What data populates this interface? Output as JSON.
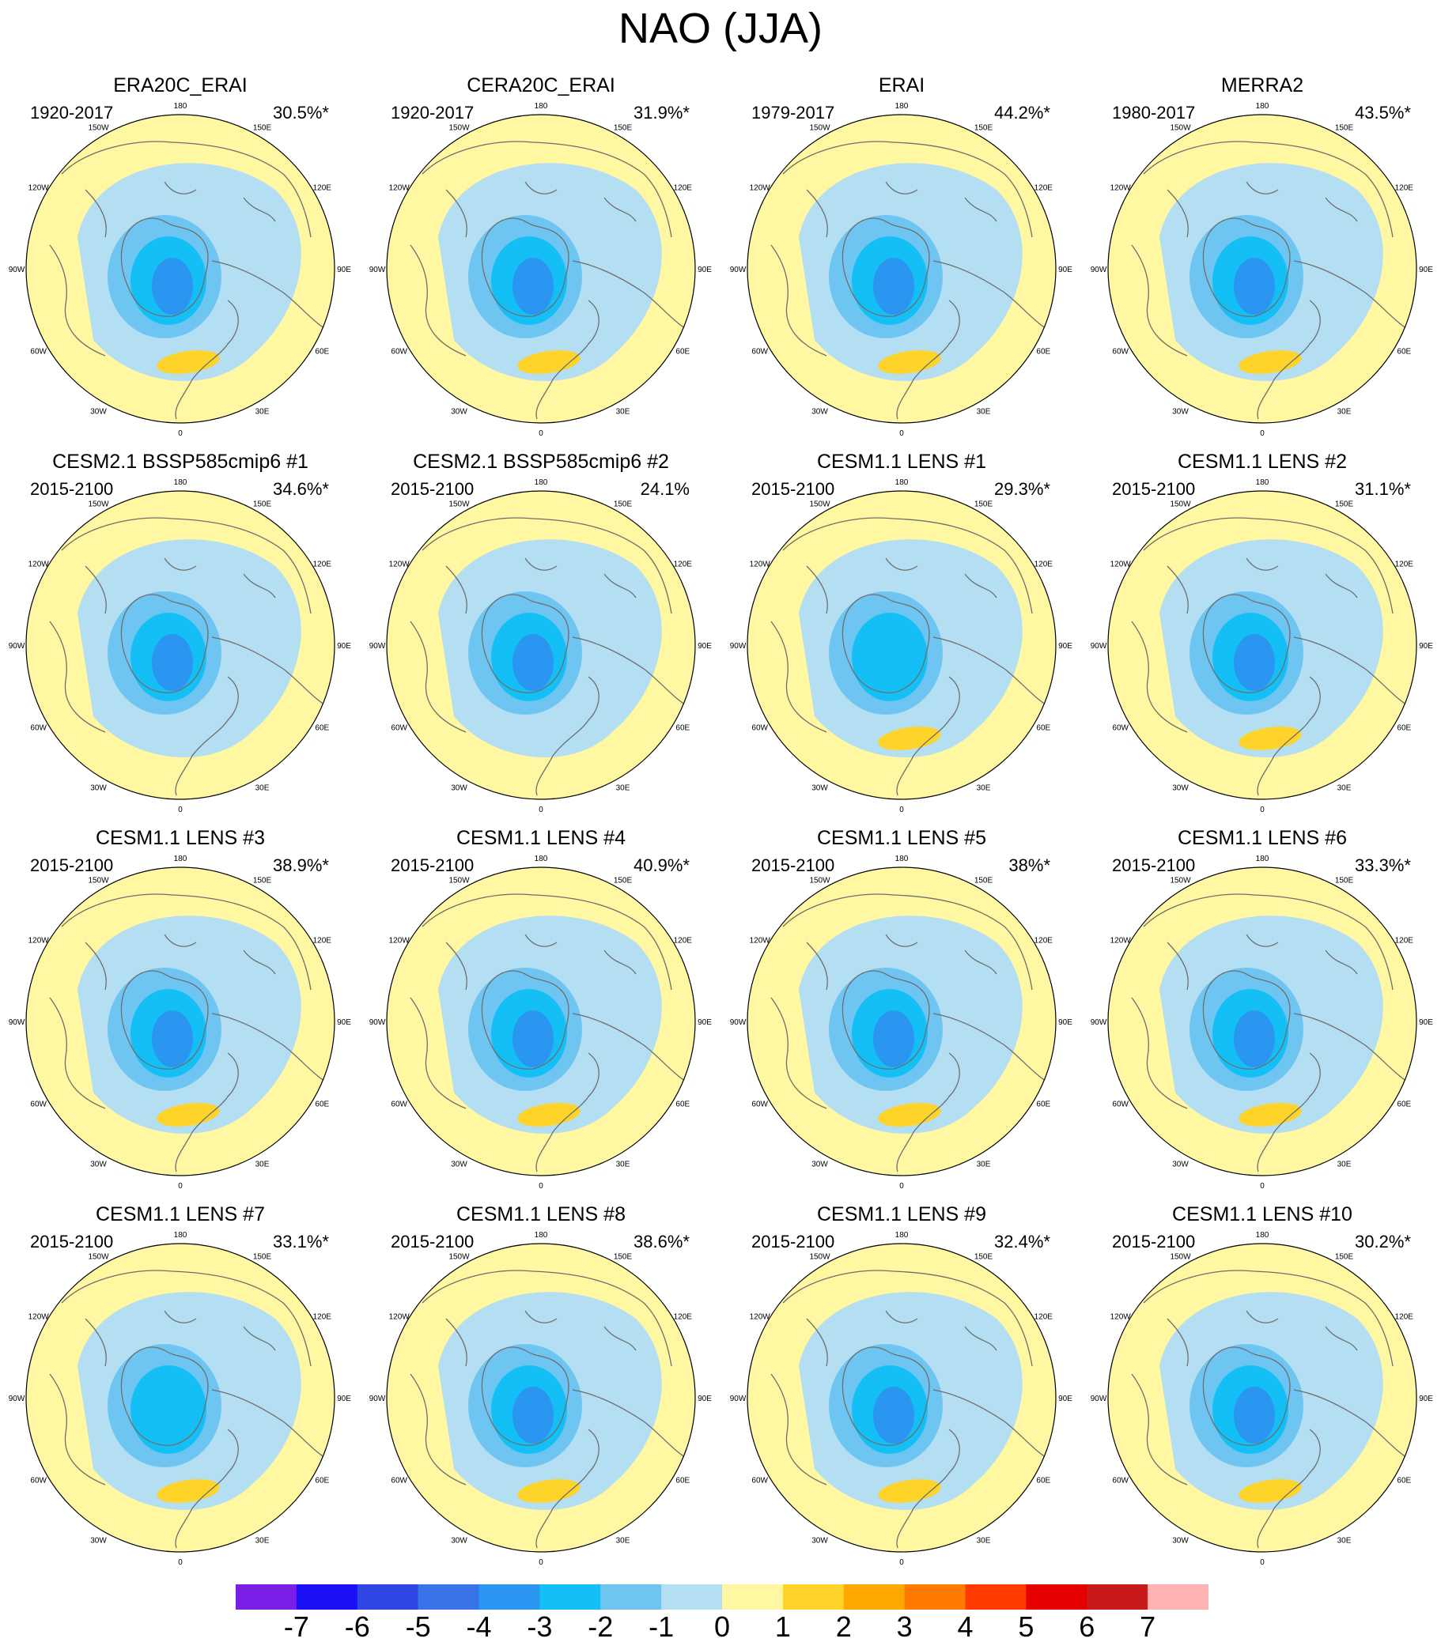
{
  "figure_title": "NAO (JJA)",
  "colors": {
    "map_background": "#fff7a1",
    "land_outline": "#6e6e6e",
    "contour_levels": [
      "#7b1fe8",
      "#1a0ff5",
      "#2f45e6",
      "#3a72e8",
      "#2a96f2",
      "#14bff5",
      "#6fc5f2",
      "#b4dff2",
      "#fff7a1",
      "#ffd42a",
      "#ffa800",
      "#ff7a00",
      "#ff3a00",
      "#e60000",
      "#c81a1a",
      "#ffb3b3"
    ]
  },
  "lon_labels": [
    "180",
    "150E",
    "120E",
    "90E",
    "60E",
    "30E",
    "0",
    "30W",
    "60W",
    "90W",
    "120W",
    "150W"
  ],
  "chart_data": {
    "type": "heatmap",
    "title": "NAO (JJA)",
    "projection": "north polar stereographic",
    "colorbar": {
      "tick_labels": [
        "-7",
        "-6",
        "-5",
        "-4",
        "-3",
        "-2",
        "-1",
        "0",
        "1",
        "2",
        "3",
        "4",
        "5",
        "6",
        "7"
      ],
      "levels": [
        -7,
        -6,
        -5,
        -4,
        -3,
        -2,
        -1,
        0,
        1,
        2,
        3,
        4,
        5,
        6,
        7
      ]
    },
    "panels": [
      {
        "title": "ERA20C_ERAI",
        "period": "1920-2017",
        "variance": "30.5%*",
        "low_center": -3.5,
        "high_center": 1.5
      },
      {
        "title": "CERA20C_ERAI",
        "period": "1920-2017",
        "variance": "31.9%*",
        "low_center": -3.5,
        "high_center": 1.5
      },
      {
        "title": "ERAI",
        "period": "1979-2017",
        "variance": "44.2%*",
        "low_center": -3.5,
        "high_center": 1.5
      },
      {
        "title": "MERRA2",
        "period": "1980-2017",
        "variance": "43.5%*",
        "low_center": -3.5,
        "high_center": 1.5
      },
      {
        "title": "CESM2.1 BSSP585cmip6 #1",
        "period": "2015-2100",
        "variance": "34.6%*",
        "low_center": -3.5,
        "high_center": 0.5
      },
      {
        "title": "CESM2.1 BSSP585cmip6 #2",
        "period": "2015-2100",
        "variance": "24.1%",
        "low_center": -3.5,
        "high_center": 0.5
      },
      {
        "title": "CESM1.1 LENS #1",
        "period": "2015-2100",
        "variance": "29.3%*",
        "low_center": -2.5,
        "high_center": 1.5
      },
      {
        "title": "CESM1.1 LENS #2",
        "period": "2015-2100",
        "variance": "31.1%*",
        "low_center": -3.5,
        "high_center": 1.5
      },
      {
        "title": "CESM1.1 LENS #3",
        "period": "2015-2100",
        "variance": "38.9%*",
        "low_center": -3.5,
        "high_center": 1.5
      },
      {
        "title": "CESM1.1 LENS #4",
        "period": "2015-2100",
        "variance": "40.9%*",
        "low_center": -3.5,
        "high_center": 1.5
      },
      {
        "title": "CESM1.1 LENS #5",
        "period": "2015-2100",
        "variance": "38%*",
        "low_center": -3.5,
        "high_center": 1.5
      },
      {
        "title": "CESM1.1 LENS #6",
        "period": "2015-2100",
        "variance": "33.3%*",
        "low_center": -3.5,
        "high_center": 1.5
      },
      {
        "title": "CESM1.1 LENS #7",
        "period": "2015-2100",
        "variance": "33.1%*",
        "low_center": -2.5,
        "high_center": 1.5
      },
      {
        "title": "CESM1.1 LENS #8",
        "period": "2015-2100",
        "variance": "38.6%*",
        "low_center": -3.5,
        "high_center": 1.5
      },
      {
        "title": "CESM1.1 LENS #9",
        "period": "2015-2100",
        "variance": "32.4%*",
        "low_center": -3.5,
        "high_center": 1.5
      },
      {
        "title": "CESM1.1 LENS #10",
        "period": "2015-2100",
        "variance": "30.2%*",
        "low_center": -3.5,
        "high_center": 1.5
      }
    ]
  }
}
